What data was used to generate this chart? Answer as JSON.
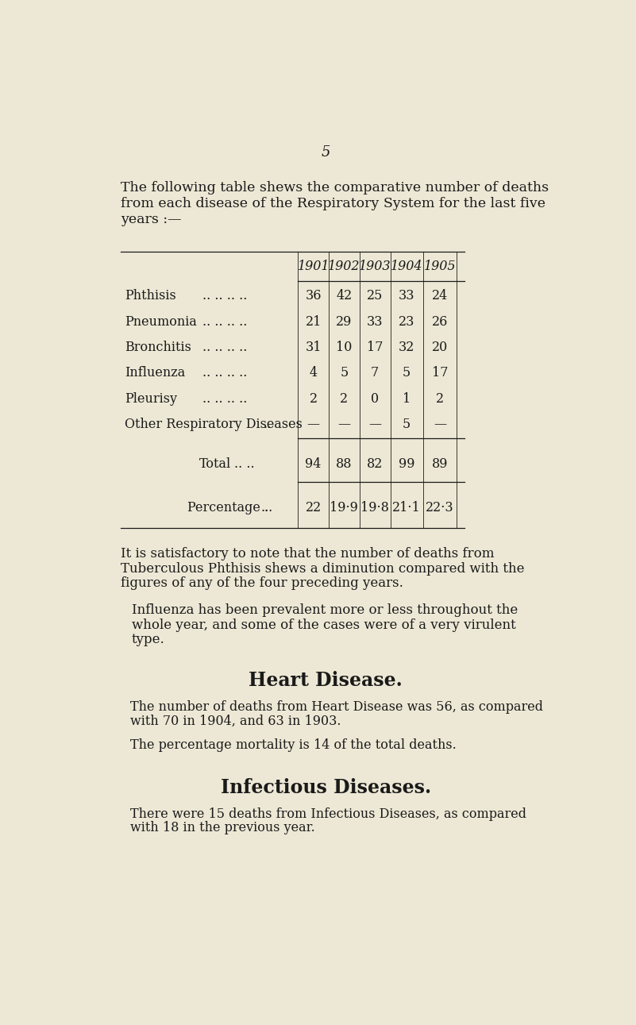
{
  "bg_color": "#ede8d5",
  "text_color": "#1a1a1a",
  "page_number": "5",
  "intro_line1": "The following table shews the comparative number of deaths",
  "intro_line2": "from each disease of the Respiratory System for the last five",
  "intro_line3": "years :—",
  "years": [
    "1901",
    "1902",
    "1903",
    "1904",
    "1905"
  ],
  "rows": [
    {
      "label": "Phthisis",
      "dots": ".. .. .. ..",
      "values": [
        "36",
        "42",
        "25",
        "33",
        "24"
      ]
    },
    {
      "label": "Pneumonia",
      "dots": ".. .. .. ..",
      "values": [
        "21",
        "29",
        "33",
        "23",
        "26"
      ]
    },
    {
      "label": "Bronchitis",
      "dots": ".. .. .. ..",
      "values": [
        "31",
        "10",
        "17",
        "32",
        "20"
      ]
    },
    {
      "label": "Influenza",
      "dots": ".. .. .. ..",
      "values": [
        "4",
        "5",
        "7",
        "5",
        "17"
      ]
    },
    {
      "label": "Pleurisy",
      "dots": ".. .. .. ..",
      "values": [
        "2",
        "2",
        "0",
        "1",
        "2"
      ]
    },
    {
      "label": "Other Respiratory Diseases",
      "dots": "..",
      "values": [
        "—",
        "—",
        "—",
        "5",
        "—"
      ]
    }
  ],
  "total_label": "Total",
  "total_dots": ".. ..",
  "total_values": [
    "94",
    "88",
    "82",
    "99",
    "89"
  ],
  "pct_label": "Percentage ..",
  "pct_dots": "..",
  "pct_values": [
    "22",
    "19·9",
    "19·8",
    "21·1",
    "22·3"
  ],
  "para1_line1": "It is satisfactory to note that the number of deaths from",
  "para1_line2": "Tuberculous Phthisis shews a diminution compared with the",
  "para1_line3": "figures of any of the four preceding years.",
  "para2_line1": "Influenza has been prevalent more or less throughout the",
  "para2_line2": "whole year, and some of the cases were of a very virulent",
  "para2_line3": "type.",
  "heading2": "Heart Disease.",
  "para3_line1": "The number of deaths from Heart Disease was 56, as compared",
  "para3_line2": "with 70 in 1904, and 63 in 1903.",
  "para4": "The percentage mortality is 14 of the total deaths.",
  "heading3": "Infectious Diseases.",
  "para5_line1": "There were 15 deaths from Infectious Diseases, as compared",
  "para5_line2": "with 18 in the previous year."
}
